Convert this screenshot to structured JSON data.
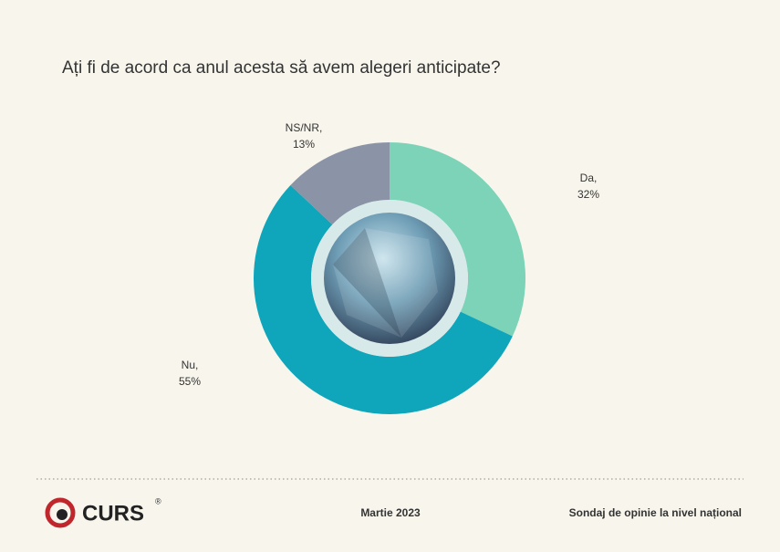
{
  "chart_data": {
    "type": "donut",
    "title": "Ați fi de acord ca anul acesta să avem alegeri anticipate?",
    "categories": [
      "Da,",
      "Nu,",
      "NS/NR,"
    ],
    "values": [
      32,
      55,
      13
    ],
    "value_labels": [
      "32%",
      "55%",
      "13%"
    ],
    "colors": [
      "#7dd3b8",
      "#0fa5bb",
      "#8b93a6"
    ]
  },
  "footer": {
    "logo": "CURS",
    "registered": "®",
    "date": "Martie 2023",
    "note": "Sondaj de opinie la nivel național"
  }
}
